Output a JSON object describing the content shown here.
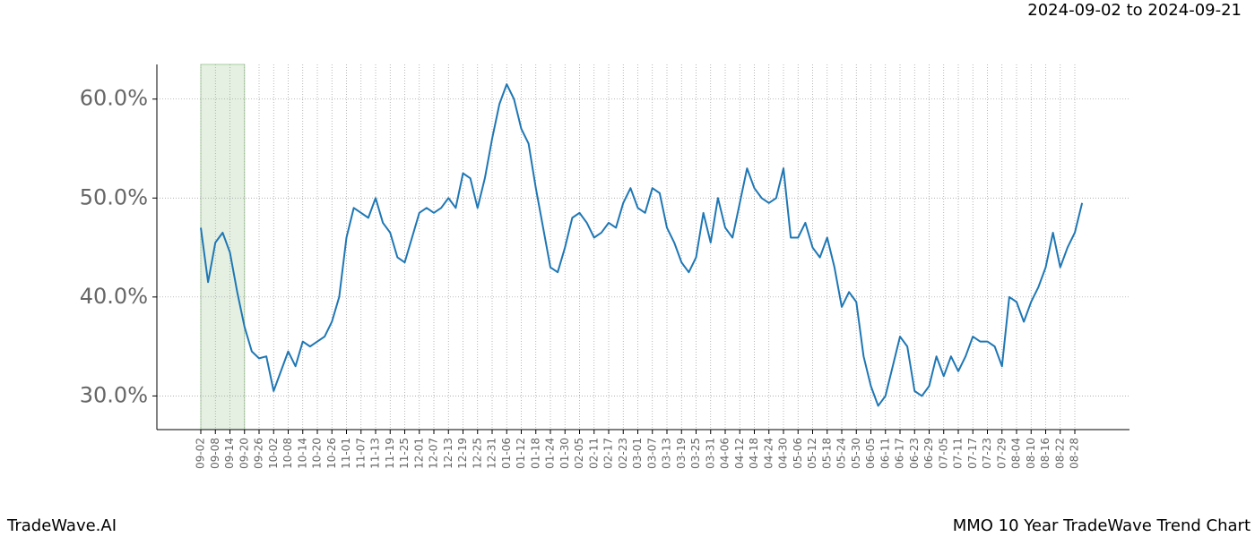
{
  "chart_data": {
    "type": "line",
    "title": "MMO 10 Year TradeWave Trend Chart",
    "subtitle": "2024-09-02 to 2024-09-21",
    "source": "TradeWave.AI",
    "categories": [
      "09-02",
      null,
      "09-08",
      null,
      "09-14",
      null,
      "09-20",
      null,
      "09-26",
      null,
      "10-02",
      null,
      "10-08",
      null,
      "10-14",
      null,
      "10-20",
      null,
      "10-26",
      null,
      "11-01",
      null,
      "11-07",
      null,
      "11-13",
      null,
      "11-19",
      null,
      "11-25",
      null,
      "12-01",
      null,
      "12-07",
      null,
      "12-13",
      null,
      "12-19",
      null,
      "12-25",
      null,
      "12-31",
      null,
      "01-06",
      null,
      "01-12",
      null,
      "01-18",
      null,
      "01-24",
      null,
      "01-30",
      null,
      "02-05",
      null,
      "02-11",
      null,
      "02-17",
      null,
      "02-23",
      null,
      "03-01",
      null,
      "03-07",
      null,
      "03-13",
      null,
      "03-19",
      null,
      "03-25",
      null,
      "03-31",
      null,
      "04-06",
      null,
      "04-12",
      null,
      "04-18",
      null,
      "04-24",
      null,
      "04-30",
      null,
      "05-06",
      null,
      "05-12",
      null,
      "05-18",
      null,
      "05-24",
      null,
      "05-30",
      null,
      "06-05",
      null,
      "06-11",
      null,
      "06-17",
      null,
      "06-23",
      null,
      "06-29",
      null,
      "07-05",
      null,
      "07-11",
      null,
      "07-17",
      null,
      "07-23",
      null,
      "07-29",
      null,
      "08-04",
      null,
      "08-10",
      null,
      "08-16",
      null,
      "08-22",
      null,
      "08-28",
      null
    ],
    "series": [
      {
        "color": "#1f77b4",
        "values": [
          47.0,
          41.5,
          45.5,
          46.5,
          44.5,
          40.5,
          37,
          34.5,
          33.8,
          34,
          30.5,
          32.5,
          34.5,
          33,
          35.5,
          35,
          35.5,
          36,
          37.5,
          40,
          46,
          49,
          48.5,
          48,
          50,
          47.5,
          46.5,
          44,
          43.5,
          46,
          48.5,
          49,
          48.5,
          49,
          50,
          49,
          52.5,
          52,
          49,
          52,
          56,
          59.5,
          61.5,
          60,
          57,
          55.5,
          51,
          47,
          43,
          42.5,
          45,
          48,
          48.5,
          47.5,
          46,
          46.5,
          47.5,
          47,
          49.5,
          51,
          49,
          48.5,
          51,
          50.5,
          47,
          45.5,
          43.5,
          42.5,
          44,
          48.5,
          45.5,
          50,
          47,
          46,
          49.5,
          53,
          51,
          50,
          49.5,
          50,
          53,
          46,
          46,
          47.5,
          45,
          44,
          46,
          43,
          39,
          40.5,
          39.5,
          34,
          31,
          29,
          30,
          33,
          36,
          35,
          30.5,
          30,
          31,
          34,
          32,
          34,
          32.5,
          34,
          36,
          35.5,
          35.5,
          35,
          33,
          40,
          39.5,
          37.5,
          39.5,
          41,
          43,
          46.5,
          43,
          45,
          46.5,
          49.5
        ]
      }
    ],
    "ylim": [
      26.6,
      63.5
    ],
    "yticks": [
      {
        "value": 30,
        "label": "30.0%"
      },
      {
        "value": 40,
        "label": "40.0%"
      },
      {
        "value": 50,
        "label": "50.0%"
      },
      {
        "value": 60,
        "label": "60.0%"
      }
    ],
    "highlight": [
      "09-02",
      "09-20"
    ],
    "highlight_color": "#e5f0e2",
    "grid": true
  }
}
